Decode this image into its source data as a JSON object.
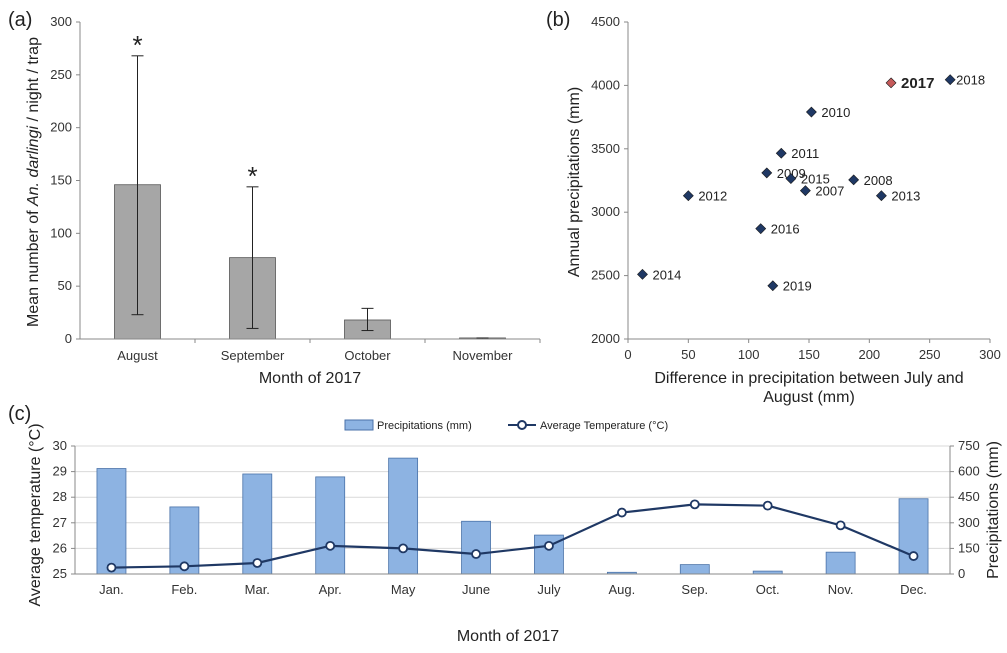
{
  "colors": {
    "bar_a": "#a6a6a6",
    "point": "#1f3864",
    "highlight": "#c55a5a",
    "bar_c": "#8db3e2",
    "line": "#1f3864"
  },
  "chart_data": [
    {
      "panel": "(a)",
      "type": "bar",
      "categories": [
        "August",
        "September",
        "October",
        "November"
      ],
      "values": [
        146,
        77,
        18,
        1
      ],
      "error_low": [
        23,
        10,
        8,
        0
      ],
      "error_high": [
        268,
        144,
        29,
        1
      ],
      "significance": [
        "*",
        "*",
        "",
        ""
      ],
      "xlabel": "Month of 2017",
      "ylabel_prefix": "Mean number of ",
      "ylabel_italic": "An. darlingi",
      "ylabel_suffix": " / night / trap",
      "ylim": [
        0,
        300
      ],
      "yticks": [
        0,
        50,
        100,
        150,
        200,
        250,
        300
      ]
    },
    {
      "panel": "(b)",
      "type": "scatter",
      "points": [
        {
          "label": "2007",
          "x": 147,
          "y": 3170
        },
        {
          "label": "2008",
          "x": 187,
          "y": 3255
        },
        {
          "label": "2009",
          "x": 115,
          "y": 3310
        },
        {
          "label": "2010",
          "x": 152,
          "y": 3790
        },
        {
          "label": "2011",
          "x": 127,
          "y": 3465
        },
        {
          "label": "2012",
          "x": 50,
          "y": 3130
        },
        {
          "label": "2013",
          "x": 210,
          "y": 3130
        },
        {
          "label": "2014",
          "x": 12,
          "y": 2510
        },
        {
          "label": "2015",
          "x": 135,
          "y": 3265
        },
        {
          "label": "2016",
          "x": 110,
          "y": 2870
        },
        {
          "label": "2017",
          "x": 218,
          "y": 4020,
          "highlight": true
        },
        {
          "label": "2018",
          "x": 267,
          "y": 4045
        },
        {
          "label": "2019",
          "x": 120,
          "y": 2420
        }
      ],
      "xlabel_line1": "Difference in precipitation between July and",
      "xlabel_line2": "August (mm)",
      "ylabel": "Annual precipitations (mm)",
      "xlim": [
        0,
        300
      ],
      "ylim": [
        2000,
        4500
      ],
      "xticks": [
        0,
        50,
        100,
        150,
        200,
        250,
        300
      ],
      "yticks": [
        2000,
        2500,
        3000,
        3500,
        4000,
        4500
      ]
    },
    {
      "panel": "(c)",
      "type": "bar+line",
      "categories": [
        "Jan.",
        "Feb.",
        "Mar.",
        "Apr.",
        "May",
        "June",
        "July",
        "Aug.",
        "Sep.",
        "Oct.",
        "Nov.",
        "Dec."
      ],
      "series": [
        {
          "name": "Precipitations (mm)",
          "type": "bar",
          "axis": "right",
          "values": [
            618,
            393,
            586,
            569,
            679,
            309,
            228,
            10,
            55,
            17,
            128,
            441
          ]
        },
        {
          "name": "Average Temperature (°C)",
          "type": "line",
          "axis": "left",
          "values": [
            25.25,
            25.3,
            25.43,
            26.1,
            26.0,
            25.78,
            26.1,
            27.4,
            27.72,
            27.67,
            26.9,
            25.7
          ]
        }
      ],
      "xlabel": "Month of 2017",
      "ylabel_left": "Average temperature (°C)",
      "ylabel_right": "Precipitations (mm)",
      "ylim_left": [
        25,
        30
      ],
      "ylim_right": [
        0,
        750
      ],
      "yticks_left": [
        25,
        26,
        27,
        28,
        29,
        30
      ],
      "yticks_right": [
        0,
        150,
        300,
        450,
        600,
        750
      ]
    }
  ]
}
